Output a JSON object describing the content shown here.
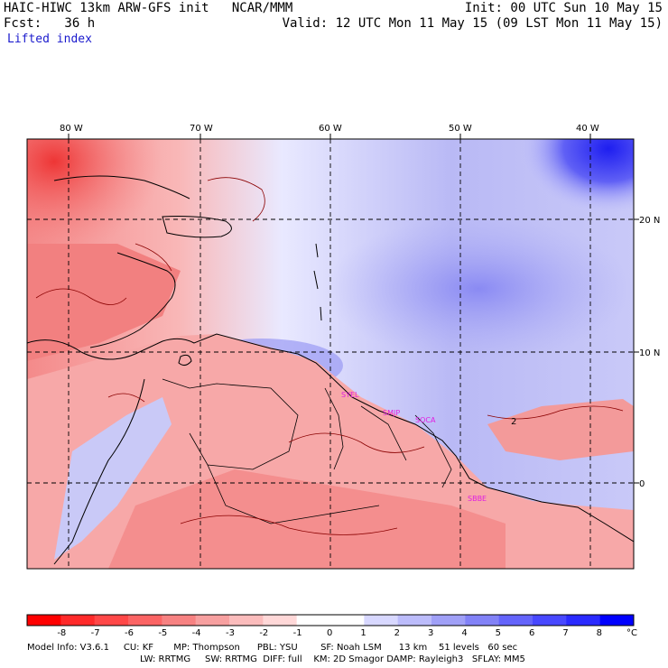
{
  "header": {
    "title": "HAIC-HIWC 13km ARW-GFS init   NCAR/MMM",
    "init": "Init: 00 UTC Sun 10 May 15",
    "fcst": "Fcst:   36 h",
    "valid": "Valid: 12 UTC Mon 11 May 15 (09 LST Mon 11 May 15)",
    "field": "Lifted index"
  },
  "map": {
    "lon_labels": [
      "80 W",
      "70 W",
      "60 W",
      "50 W",
      "40 W"
    ],
    "lat_labels": [
      "20 N",
      "10 N",
      "0"
    ],
    "sites": [
      "SYEL",
      "SMJP",
      "SOCA",
      "SBBE"
    ],
    "contour_label": "2"
  },
  "colorbar": {
    "labels": [
      "-8",
      "-7",
      "-6",
      "-5",
      "-4",
      "-3",
      "-2",
      "-1",
      "0",
      "1",
      "2",
      "3",
      "4",
      "5",
      "6",
      "7",
      "8"
    ],
    "unit": "°C",
    "colors": [
      "#ff0000",
      "#ff2a2a",
      "#ff4848",
      "#fb6464",
      "#f78282",
      "#f7a0a0",
      "#fbbcbc",
      "#ffd8d8",
      "#ffffff",
      "#ffffff",
      "#d8d8ff",
      "#bcbcfb",
      "#a0a0f7",
      "#8282f7",
      "#6464fb",
      "#4848ff",
      "#2a2aff",
      "#0000ff"
    ]
  },
  "model_info": {
    "line1": "Model Info: V3.6.1     CU: KF       MP: Thompson      PBL: YSU        SF: Noah LSM      13 km    51 levels   60 sec",
    "line2": "LW: RRTMG     SW: RRTMG  DIFF: full    KM: 2D Smagor DAMP: Rayleigh3   SFLAY: MM5"
  }
}
